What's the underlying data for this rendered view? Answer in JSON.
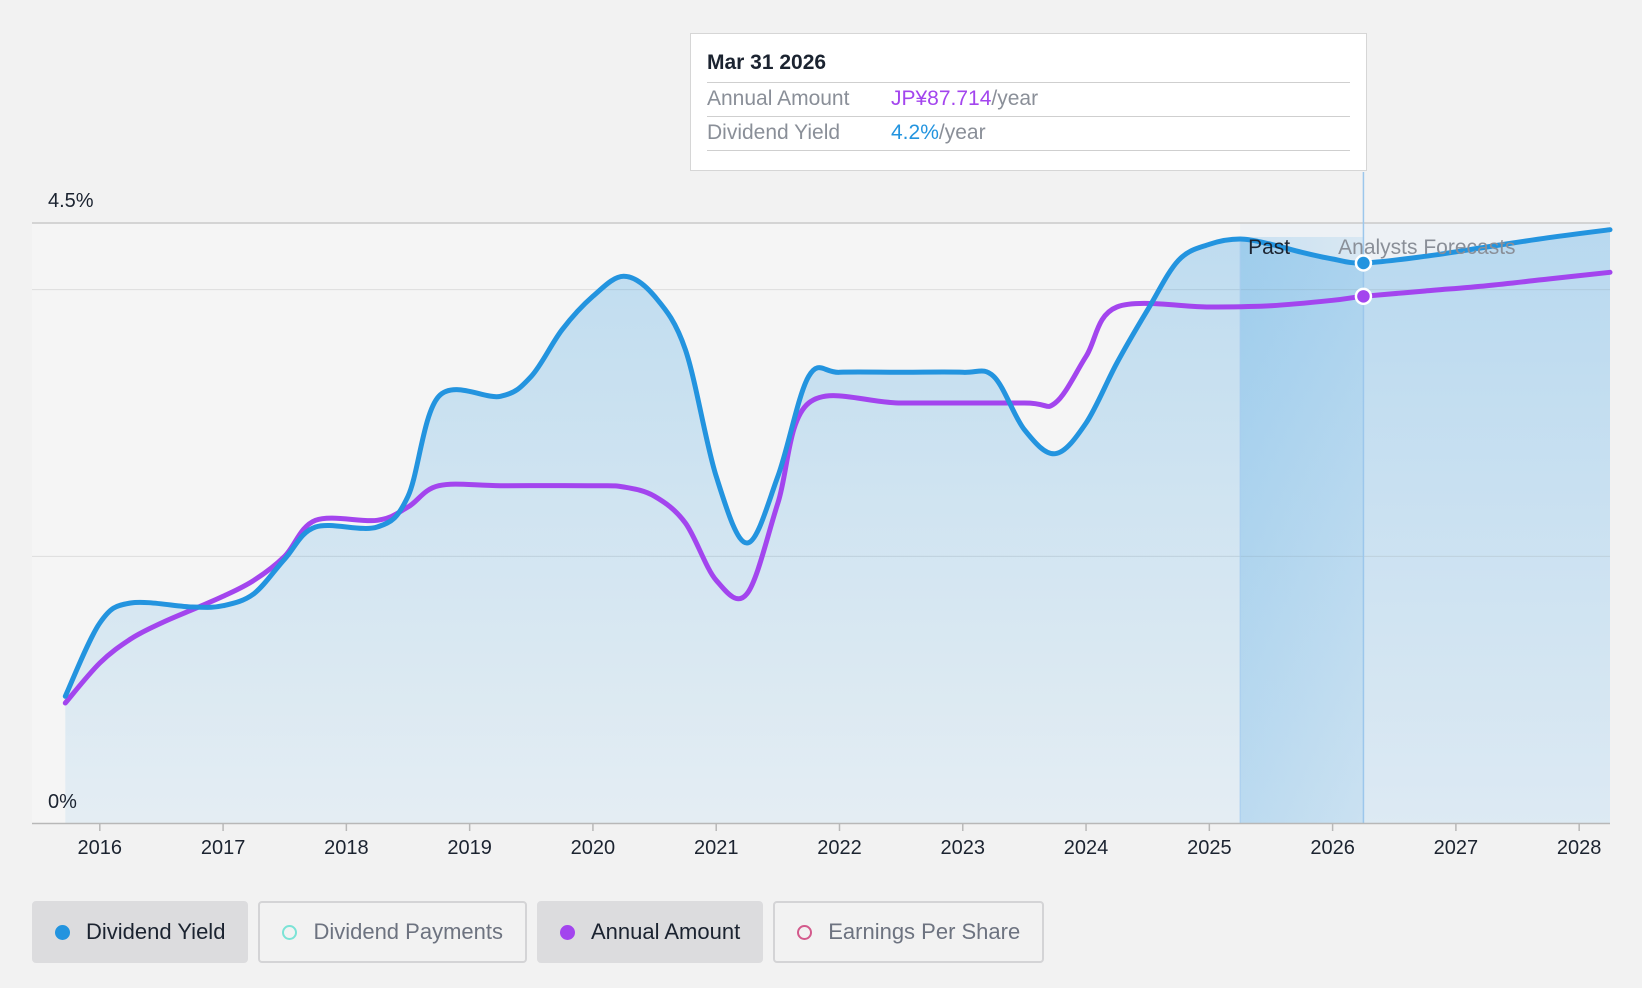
{
  "colors": {
    "yield": "#2394df",
    "annual": "#a345ee",
    "payments": "#7be3d6",
    "eps": "#d35a8c",
    "text": "#1b2330",
    "muted": "#8a8f98"
  },
  "tooltip": {
    "date": "Mar 31 2026",
    "annual_label": "Annual Amount",
    "annual_value": "JP¥87.714",
    "annual_unit": "/year",
    "yield_label": "Dividend Yield",
    "yield_value": "4.2%",
    "yield_unit": "/year"
  },
  "regions": {
    "past_label": "Past",
    "forecast_label": "Analysts Forecasts"
  },
  "legend": [
    {
      "label": "Dividend Yield",
      "color": "#2394df",
      "filled": true,
      "active": true
    },
    {
      "label": "Dividend Payments",
      "color": "#7be3d6",
      "filled": false,
      "active": false
    },
    {
      "label": "Annual Amount",
      "color": "#a345ee",
      "filled": true,
      "active": true
    },
    {
      "label": "Earnings Per Share",
      "color": "#d35a8c",
      "filled": false,
      "active": false
    }
  ],
  "chart_data": {
    "type": "line",
    "y_tick_labels": [
      "0%",
      "4.5%"
    ],
    "ylim": [
      0,
      4.5
    ],
    "xlim": [
      2015.45,
      2028.25
    ],
    "x_ticks": [
      2016,
      2017,
      2018,
      2019,
      2020,
      2021,
      2022,
      2023,
      2024,
      2025,
      2026,
      2027,
      2028
    ],
    "past_end": 2025.25,
    "hover_x": 2026.25,
    "grid": true,
    "series": [
      {
        "name": "Dividend Yield",
        "unit": "%",
        "area": true,
        "points": [
          [
            2015.72,
            0.95
          ],
          [
            2016.0,
            1.5
          ],
          [
            2016.25,
            1.65
          ],
          [
            2016.75,
            1.62
          ],
          [
            2017.0,
            1.63
          ],
          [
            2017.25,
            1.72
          ],
          [
            2017.5,
            1.98
          ],
          [
            2017.75,
            2.22
          ],
          [
            2018.25,
            2.22
          ],
          [
            2018.5,
            2.45
          ],
          [
            2018.75,
            3.2
          ],
          [
            2019.25,
            3.2
          ],
          [
            2019.5,
            3.35
          ],
          [
            2019.75,
            3.7
          ],
          [
            2020.0,
            3.95
          ],
          [
            2020.25,
            4.1
          ],
          [
            2020.5,
            3.95
          ],
          [
            2020.75,
            3.55
          ],
          [
            2021.0,
            2.6
          ],
          [
            2021.25,
            2.1
          ],
          [
            2021.5,
            2.6
          ],
          [
            2021.75,
            3.35
          ],
          [
            2022.0,
            3.38
          ],
          [
            2022.5,
            3.38
          ],
          [
            2023.0,
            3.38
          ],
          [
            2023.25,
            3.35
          ],
          [
            2023.5,
            2.95
          ],
          [
            2023.75,
            2.77
          ],
          [
            2024.0,
            3.0
          ],
          [
            2024.25,
            3.45
          ],
          [
            2024.5,
            3.85
          ],
          [
            2024.75,
            4.22
          ],
          [
            2025.0,
            4.34
          ],
          [
            2025.25,
            4.38
          ],
          [
            2025.5,
            4.34
          ],
          [
            2025.75,
            4.28
          ],
          [
            2026.0,
            4.23
          ],
          [
            2026.25,
            4.2
          ],
          [
            2026.75,
            4.25
          ],
          [
            2027.25,
            4.32
          ],
          [
            2027.75,
            4.39
          ],
          [
            2028.25,
            4.45
          ]
        ]
      },
      {
        "name": "Annual Amount",
        "unit": "%",
        "area": false,
        "points": [
          [
            2015.72,
            0.9
          ],
          [
            2016.0,
            1.2
          ],
          [
            2016.25,
            1.38
          ],
          [
            2016.5,
            1.5
          ],
          [
            2016.75,
            1.6
          ],
          [
            2017.0,
            1.7
          ],
          [
            2017.25,
            1.82
          ],
          [
            2017.5,
            2.0
          ],
          [
            2017.75,
            2.27
          ],
          [
            2018.25,
            2.27
          ],
          [
            2018.5,
            2.37
          ],
          [
            2018.75,
            2.53
          ],
          [
            2019.25,
            2.53
          ],
          [
            2020.0,
            2.53
          ],
          [
            2020.25,
            2.52
          ],
          [
            2020.5,
            2.45
          ],
          [
            2020.75,
            2.25
          ],
          [
            2021.0,
            1.82
          ],
          [
            2021.25,
            1.72
          ],
          [
            2021.5,
            2.4
          ],
          [
            2021.75,
            3.15
          ],
          [
            2022.5,
            3.15
          ],
          [
            2023.5,
            3.15
          ],
          [
            2023.75,
            3.15
          ],
          [
            2024.0,
            3.5
          ],
          [
            2024.25,
            3.87
          ],
          [
            2025.0,
            3.87
          ],
          [
            2025.5,
            3.88
          ],
          [
            2026.0,
            3.92
          ],
          [
            2026.25,
            3.95
          ],
          [
            2026.75,
            3.99
          ],
          [
            2027.25,
            4.03
          ],
          [
            2027.75,
            4.08
          ],
          [
            2028.25,
            4.13
          ]
        ]
      }
    ]
  }
}
